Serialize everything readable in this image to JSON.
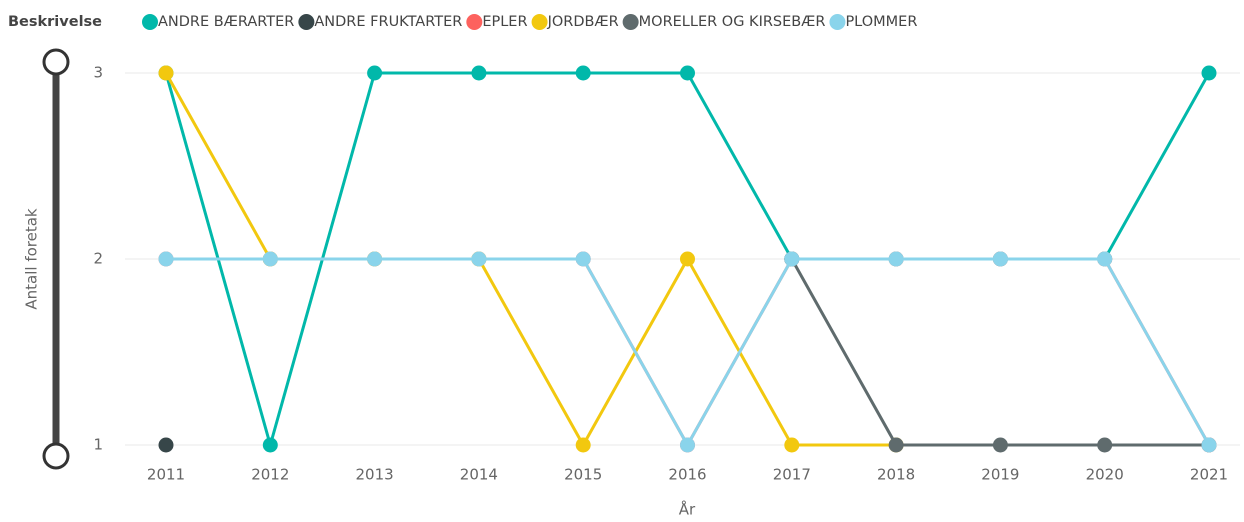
{
  "chart_data": {
    "type": "line",
    "legend_title": "Beskrivelse",
    "x_label": "År",
    "y_label": "Antall foretak",
    "x": [
      2011,
      2012,
      2013,
      2014,
      2015,
      2016,
      2017,
      2018,
      2019,
      2020,
      2021
    ],
    "xlim": [
      2011,
      2021
    ],
    "xticks": [
      2011,
      2012,
      2013,
      2014,
      2015,
      2016,
      2017,
      2018,
      2019,
      2020,
      2021
    ],
    "ylim": [
      1,
      3
    ],
    "yticks": [
      1,
      2,
      3
    ],
    "grid": true,
    "legend": "top",
    "series": [
      {
        "name": "ANDRE BÆRARTER",
        "color": "#01b8aa",
        "values": [
          3,
          1,
          3,
          3,
          3,
          3,
          2,
          2,
          2,
          2,
          3
        ]
      },
      {
        "name": "ANDRE FRUKTARTER",
        "color": "#374649",
        "values": [
          1,
          null,
          null,
          null,
          null,
          null,
          null,
          null,
          null,
          null,
          null
        ]
      },
      {
        "name": "EPLER",
        "color": "#fd625e",
        "values": [
          2,
          2,
          2,
          2,
          2,
          1,
          2,
          2,
          2,
          2,
          1
        ]
      },
      {
        "name": "JORDBÆR",
        "color": "#f2c80f",
        "values": [
          3,
          2,
          2,
          2,
          1,
          2,
          1,
          1,
          null,
          null,
          null
        ]
      },
      {
        "name": "MORELLER OG KIRSEBÆR",
        "color": "#5f6b6d",
        "values": [
          null,
          null,
          null,
          null,
          null,
          null,
          2,
          1,
          1,
          1,
          1
        ]
      },
      {
        "name": "PLOMMER",
        "color": "#8ad4eb",
        "values": [
          2,
          2,
          2,
          2,
          2,
          1,
          2,
          2,
          2,
          2,
          1
        ]
      }
    ]
  }
}
